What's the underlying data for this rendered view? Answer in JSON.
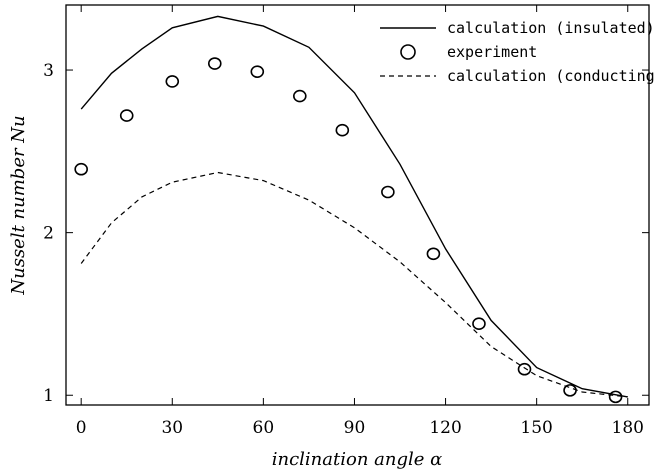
{
  "chart_data": {
    "type": "line",
    "xlabel": "inclination angle α",
    "ylabel": "Nusselt number Nu",
    "xlim": [
      -5,
      187
    ],
    "ylim": [
      0.94,
      3.4
    ],
    "xticks": [
      0,
      30,
      60,
      90,
      120,
      150,
      180
    ],
    "yticks": [
      1,
      2,
      3
    ],
    "grid": false,
    "legend_position": "top-right",
    "series": [
      {
        "name": "calculation (insulated)",
        "style": "solid",
        "x": [
          0,
          10,
          20,
          30,
          45,
          60,
          75,
          90,
          105,
          120,
          135,
          150,
          165,
          180
        ],
        "y": [
          2.76,
          2.98,
          3.13,
          3.26,
          3.33,
          3.27,
          3.14,
          2.86,
          2.42,
          1.9,
          1.46,
          1.17,
          1.04,
          0.99
        ]
      },
      {
        "name": "experiment",
        "style": "marker",
        "x": [
          0,
          15,
          30,
          44,
          58,
          72,
          86,
          101,
          116,
          131,
          146,
          161,
          176
        ],
        "y": [
          2.39,
          2.72,
          2.93,
          3.04,
          2.99,
          2.84,
          2.63,
          2.25,
          1.87,
          1.44,
          1.16,
          1.03,
          0.99
        ]
      },
      {
        "name": "calculation (conducting)",
        "style": "dashed",
        "x": [
          0,
          10,
          20,
          30,
          45,
          60,
          75,
          90,
          105,
          120,
          135,
          150,
          165,
          180
        ],
        "y": [
          1.81,
          2.06,
          2.22,
          2.31,
          2.37,
          2.32,
          2.2,
          2.03,
          1.82,
          1.57,
          1.3,
          1.12,
          1.02,
          0.99
        ]
      }
    ]
  }
}
